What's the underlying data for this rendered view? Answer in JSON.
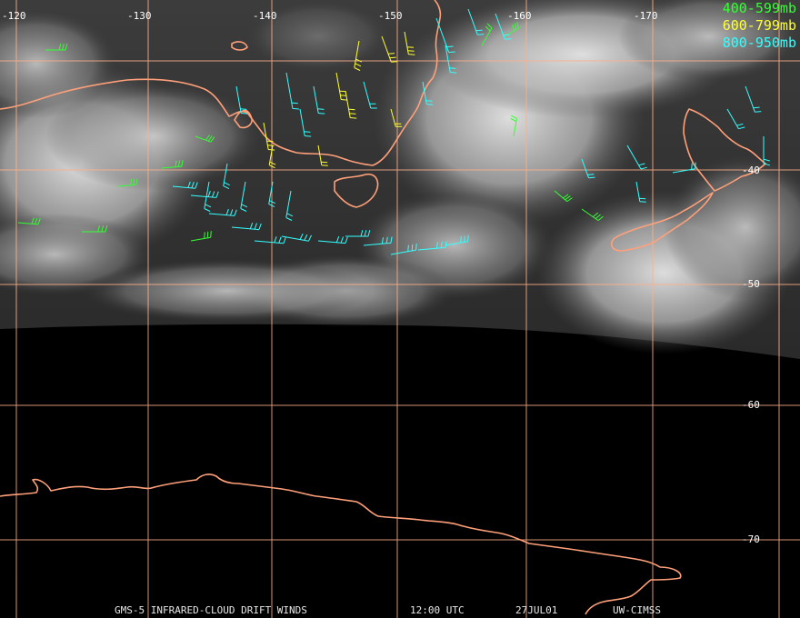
{
  "legend": {
    "items": [
      {
        "label": "400-599mb",
        "color": "#33ff33"
      },
      {
        "label": "600-799mb",
        "color": "#ffff33"
      },
      {
        "label": "800-950mb",
        "color": "#33ffff"
      }
    ]
  },
  "axes": {
    "longitude_labels": [
      "-120",
      "-130",
      "-140",
      "-150",
      "-160",
      "-170"
    ],
    "latitude_labels": [
      "-40",
      "-50",
      "-60",
      "-70"
    ]
  },
  "footer": {
    "product": "GMS-5 INFRARED-CLOUD DRIFT WINDS",
    "time": "12:00 UTC",
    "date": "27JUL01",
    "source": "UW-CIMSS"
  },
  "colors": {
    "grid": "#ffb08a",
    "coastline": "#ffa07a",
    "background": "#000000",
    "cloud": "#d8d8d8"
  }
}
